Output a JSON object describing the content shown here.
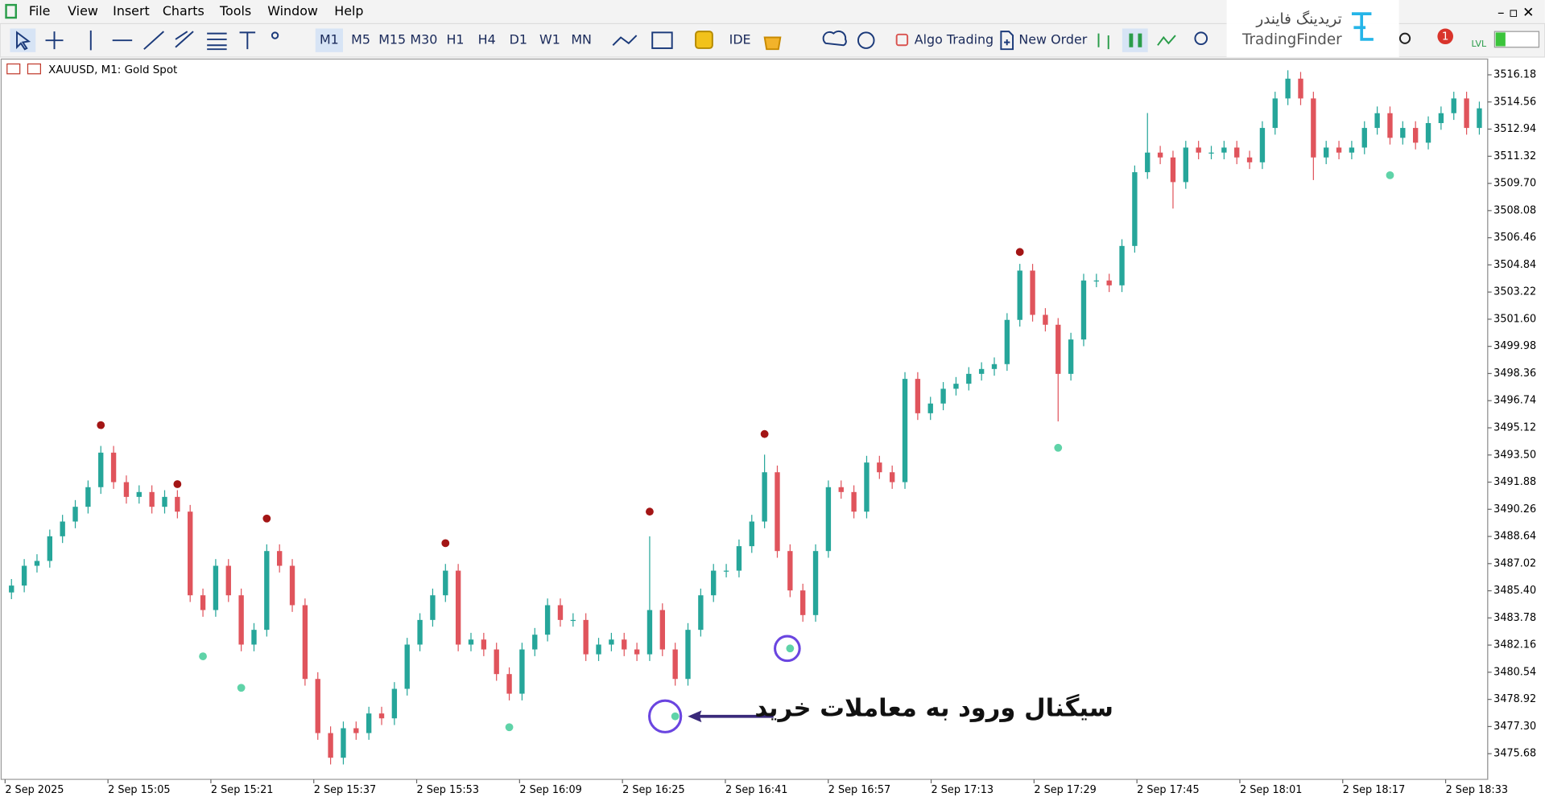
{
  "menu": [
    "File",
    "View",
    "Insert",
    "Charts",
    "Tools",
    "Window",
    "Help"
  ],
  "toolbar": {
    "timeframes": [
      "M1",
      "M5",
      "M15",
      "M30",
      "H1",
      "H4",
      "D1",
      "W1",
      "MN"
    ],
    "ide": "IDE",
    "algo_trading": "Algo Trading",
    "new_order": "New Order",
    "notifications": "1",
    "level": "LVL"
  },
  "logo": {
    "persian": "تریدینگ فایندر",
    "latin": "TradingFinder"
  },
  "chart_data": {
    "type": "candlestick",
    "title": "XAUUSD, M1:  Gold Spot",
    "up_color": "#26a69a",
    "down_color": "#e0545c",
    "ylim": [
      3474.15,
      3517.12
    ],
    "yticks": [
      3516.18,
      3514.56,
      3512.94,
      3511.32,
      {
        "value": 3509.7,
        "label": "3509.70"
      },
      3508.08,
      3506.46,
      3504.84,
      3503.22,
      {
        "value": 3501.6,
        "label": "3501.60"
      },
      3499.98,
      3498.36,
      3496.74,
      3495.12,
      {
        "value": 3493.5,
        "label": "3493.50"
      },
      3491.88,
      3490.26,
      3488.64,
      3487.02,
      {
        "value": 3485.4,
        "label": "3485.40"
      },
      3483.78,
      3482.16,
      3480.54,
      3478.92,
      {
        "value": 3477.3,
        "label": "3477.30"
      },
      3475.68
    ],
    "x_labels": [
      "2 Sep 2025",
      "2 Sep 15:05",
      "2 Sep 15:21",
      "2 Sep 15:37",
      "2 Sep 15:53",
      "2 Sep 16:09",
      "2 Sep 16:25",
      "2 Sep 16:41",
      "2 Sep 16:57",
      "2 Sep 17:13",
      "2 Sep 17:29",
      "2 Sep 17:45",
      "2 Sep 18:01",
      "2 Sep 18:17",
      "2 Sep 18:33"
    ],
    "candles": [
      [
        3485.3,
        3486.1,
        3484.9,
        3485.71
      ],
      [
        3485.71,
        3487.29,
        3485.31,
        3486.89
      ],
      [
        3486.89,
        3487.58,
        3486.49,
        3487.18
      ],
      [
        3487.18,
        3489.05,
        3486.78,
        3488.65
      ],
      [
        3488.65,
        3489.93,
        3488.25,
        3489.53
      ],
      [
        3489.53,
        3490.81,
        3489.13,
        3490.41
      ],
      [
        3490.41,
        3491.98,
        3490.01,
        3491.58
      ],
      [
        3491.58,
        3494.04,
        3491.18,
        3493.64
      ],
      [
        3493.64,
        3494.04,
        3491.48,
        3491.88
      ],
      [
        3491.88,
        3492.28,
        3490.6,
        3491.0
      ],
      [
        3491.0,
        3491.69,
        3490.6,
        3491.29
      ],
      [
        3491.29,
        3491.69,
        3490.01,
        3490.41
      ],
      [
        3490.41,
        3491.4,
        3490.01,
        3491.0
      ],
      [
        3491.0,
        3491.4,
        3489.72,
        3490.12
      ],
      [
        3490.12,
        3490.52,
        3484.73,
        3485.13
      ],
      [
        3485.13,
        3485.53,
        3483.85,
        3484.25
      ],
      [
        3484.25,
        3487.29,
        3483.85,
        3486.89
      ],
      [
        3486.89,
        3487.29,
        3484.73,
        3485.13
      ],
      [
        3485.13,
        3485.53,
        3481.79,
        3482.19
      ],
      [
        3482.19,
        3483.47,
        3481.79,
        3483.07
      ],
      [
        3483.07,
        3488.17,
        3482.67,
        3487.77
      ],
      [
        3487.77,
        3488.17,
        3486.49,
        3486.89
      ],
      [
        3486.89,
        3487.29,
        3484.14,
        3484.54
      ],
      [
        3484.54,
        3484.94,
        3479.74,
        3480.14
      ],
      [
        3480.14,
        3480.54,
        3476.51,
        3476.91
      ],
      [
        3476.91,
        3477.31,
        3475.04,
        3475.44
      ],
      [
        3475.44,
        3477.6,
        3475.04,
        3477.2
      ],
      [
        3477.2,
        3477.6,
        3476.51,
        3476.91
      ],
      [
        3476.91,
        3478.48,
        3476.51,
        3478.08
      ],
      [
        3478.08,
        3478.48,
        3477.39,
        3477.79
      ],
      [
        3477.79,
        3479.95,
        3477.39,
        3479.55
      ],
      [
        3479.55,
        3482.59,
        3479.15,
        3482.19
      ],
      [
        3482.19,
        3484.06,
        3481.79,
        3483.66
      ],
      [
        3483.66,
        3485.53,
        3483.26,
        3485.13
      ],
      [
        3485.13,
        3487.0,
        3484.73,
        3486.6
      ],
      [
        3486.6,
        3487.0,
        3481.79,
        3482.19
      ],
      [
        3482.19,
        3482.89,
        3481.79,
        3482.49
      ],
      [
        3482.49,
        3482.89,
        3481.5,
        3481.9
      ],
      [
        3481.9,
        3482.3,
        3480.03,
        3480.43
      ],
      [
        3480.43,
        3480.83,
        3478.86,
        3479.26
      ],
      [
        3479.26,
        3482.3,
        3478.86,
        3481.9
      ],
      [
        3481.9,
        3483.18,
        3481.5,
        3482.78
      ],
      [
        3482.78,
        3484.94,
        3482.38,
        3484.54
      ],
      [
        3484.54,
        3484.94,
        3483.26,
        3483.66
      ],
      [
        3483.66,
        3484.06,
        3483.26,
        3483.66
      ],
      [
        3483.66,
        3484.06,
        3481.21,
        3481.61
      ],
      [
        3481.61,
        3482.59,
        3481.21,
        3482.19
      ],
      [
        3482.19,
        3482.89,
        3481.79,
        3482.49
      ],
      [
        3482.49,
        3482.89,
        3481.5,
        3481.9
      ],
      [
        3481.9,
        3482.3,
        3481.21,
        3481.61
      ],
      [
        3481.61,
        3488.65,
        3481.21,
        3484.25
      ],
      [
        3484.25,
        3484.65,
        3481.5,
        3481.9
      ],
      [
        3481.9,
        3482.3,
        3479.74,
        3480.14
      ],
      [
        3480.14,
        3483.47,
        3479.74,
        3483.07
      ],
      [
        3483.07,
        3485.53,
        3482.67,
        3485.13
      ],
      [
        3485.13,
        3487.0,
        3484.73,
        3486.6
      ],
      [
        3486.6,
        3487.0,
        3486.2,
        3486.6
      ],
      [
        3486.6,
        3488.46,
        3486.2,
        3488.06
      ],
      [
        3488.06,
        3489.93,
        3487.66,
        3489.53
      ],
      [
        3489.53,
        3493.52,
        3489.13,
        3492.47
      ],
      [
        3492.47,
        3492.87,
        3487.37,
        3487.77
      ],
      [
        3487.77,
        3488.17,
        3485.02,
        3485.42
      ],
      [
        3485.42,
        3485.82,
        3483.55,
        3483.95
      ],
      [
        3483.95,
        3488.17,
        3483.55,
        3487.77
      ],
      [
        3487.77,
        3491.98,
        3487.37,
        3491.58
      ],
      [
        3491.58,
        3491.98,
        3490.89,
        3491.29
      ],
      [
        3491.29,
        3491.69,
        3489.72,
        3490.12
      ],
      [
        3490.12,
        3493.45,
        3489.72,
        3493.05
      ],
      [
        3493.05,
        3493.45,
        3492.07,
        3492.47
      ],
      [
        3492.47,
        3492.87,
        3491.48,
        3491.88
      ],
      [
        3491.88,
        3498.44,
        3491.48,
        3498.04
      ],
      [
        3498.04,
        3498.44,
        3495.59,
        3495.99
      ],
      [
        3495.99,
        3496.97,
        3495.59,
        3496.57
      ],
      [
        3496.57,
        3497.85,
        3496.17,
        3497.45
      ],
      [
        3497.45,
        3498.15,
        3497.05,
        3497.75
      ],
      [
        3497.75,
        3498.74,
        3497.35,
        3498.34
      ],
      [
        3498.34,
        3499.03,
        3497.94,
        3498.63
      ],
      [
        3498.63,
        3499.32,
        3498.23,
        3498.92
      ],
      [
        3498.92,
        3501.96,
        3498.52,
        3501.56
      ],
      [
        3501.56,
        3504.9,
        3501.16,
        3504.5
      ],
      [
        3504.5,
        3504.9,
        3501.46,
        3501.86
      ],
      [
        3501.86,
        3502.26,
        3500.87,
        3501.27
      ],
      [
        3501.27,
        3501.67,
        3495.5,
        3498.34
      ],
      [
        3498.34,
        3500.79,
        3497.94,
        3500.39
      ],
      [
        3500.39,
        3504.31,
        3499.99,
        3503.91
      ],
      [
        3503.91,
        3504.31,
        3503.51,
        3503.91
      ],
      [
        3503.91,
        3504.31,
        3503.22,
        3503.62
      ],
      [
        3503.62,
        3506.37,
        3503.22,
        3505.97
      ],
      [
        3505.97,
        3510.77,
        3505.57,
        3510.37
      ],
      [
        3510.37,
        3513.9,
        3509.97,
        3511.54
      ],
      [
        3511.54,
        3511.94,
        3510.85,
        3511.25
      ],
      [
        3511.25,
        3511.65,
        3508.2,
        3509.78
      ],
      [
        3509.78,
        3512.24,
        3509.38,
        3511.84
      ],
      [
        3511.84,
        3512.24,
        3511.14,
        3511.54
      ],
      [
        3511.54,
        3511.94,
        3511.14,
        3511.54
      ],
      [
        3511.54,
        3512.24,
        3511.14,
        3511.84
      ],
      [
        3511.84,
        3512.24,
        3510.85,
        3511.25
      ],
      [
        3511.25,
        3511.65,
        3510.56,
        3510.96
      ],
      [
        3510.96,
        3513.41,
        3510.56,
        3513.01
      ],
      [
        3513.01,
        3515.17,
        3512.61,
        3514.77
      ],
      [
        3514.77,
        3516.45,
        3514.37,
        3515.95
      ],
      [
        3515.95,
        3516.35,
        3514.37,
        3514.77
      ],
      [
        3514.77,
        3515.17,
        3509.9,
        3511.25
      ],
      [
        3511.25,
        3512.24,
        3510.85,
        3511.84
      ],
      [
        3511.84,
        3512.24,
        3511.14,
        3511.54
      ],
      [
        3511.54,
        3512.24,
        3511.14,
        3511.84
      ],
      [
        3511.84,
        3513.41,
        3511.44,
        3513.01
      ],
      [
        3513.01,
        3514.29,
        3512.61,
        3513.89
      ],
      [
        3513.89,
        3514.29,
        3512.02,
        3512.42
      ],
      [
        3512.42,
        3513.41,
        3512.02,
        3513.01
      ],
      [
        3513.01,
        3513.41,
        3511.73,
        3512.13
      ],
      [
        3512.13,
        3513.7,
        3511.73,
        3513.3
      ],
      [
        3513.3,
        3514.29,
        3512.9,
        3513.89
      ],
      [
        3513.89,
        3515.17,
        3513.49,
        3514.77
      ],
      [
        3514.77,
        3515.17,
        3512.61,
        3513.01
      ],
      [
        3513.01,
        3514.58,
        3512.61,
        3514.18
      ]
    ],
    "sell_signals": {
      "color": "#a31515",
      "values": [
        null,
        null,
        null,
        null,
        null,
        null,
        null,
        3495.28,
        null,
        null,
        null,
        null,
        null,
        3491.76,
        null,
        null,
        null,
        null,
        null,
        null,
        3489.71,
        null,
        null,
        null,
        null,
        null,
        null,
        null,
        null,
        null,
        null,
        null,
        null,
        null,
        3488.24,
        null,
        null,
        null,
        null,
        null,
        null,
        null,
        null,
        null,
        null,
        null,
        null,
        null,
        null,
        null,
        3490.12,
        null,
        null,
        null,
        null,
        null,
        null,
        null,
        null,
        3494.75,
        null,
        null,
        null,
        null,
        null,
        null,
        null,
        null,
        null,
        null,
        null,
        null,
        null,
        null,
        null,
        null,
        null,
        null,
        null,
        3505.61,
        null,
        null,
        null,
        null,
        null,
        null,
        null,
        null,
        null,
        null,
        null,
        null,
        null,
        null,
        null,
        null,
        null,
        null,
        null,
        null,
        null,
        null,
        null,
        null,
        null,
        null,
        null,
        null,
        null,
        null,
        null,
        null,
        null,
        null,
        null,
        null
      ]
    },
    "buy_signals": {
      "color": "#5fd3a8",
      "values": [
        null,
        null,
        null,
        null,
        null,
        null,
        null,
        null,
        null,
        null,
        null,
        null,
        null,
        null,
        null,
        3481.49,
        null,
        null,
        3479.61,
        null,
        null,
        null,
        null,
        null,
        null,
        null,
        null,
        null,
        null,
        null,
        null,
        null,
        null,
        null,
        null,
        null,
        null,
        null,
        null,
        3477.26,
        null,
        null,
        null,
        null,
        null,
        null,
        null,
        null,
        null,
        null,
        null,
        null,
        3477.91,
        null,
        null,
        null,
        null,
        null,
        null,
        null,
        null,
        3481.96,
        null,
        null,
        null,
        null,
        null,
        null,
        null,
        null,
        null,
        null,
        null,
        null,
        null,
        null,
        null,
        null,
        null,
        null,
        null,
        null,
        3493.93,
        null,
        null,
        null,
        null,
        null,
        null,
        null,
        null,
        null,
        null,
        null,
        null,
        null,
        null,
        null,
        null,
        null,
        null,
        null,
        null,
        null,
        null,
        null,
        null,
        null,
        3510.19,
        null,
        null,
        null,
        null,
        null,
        null,
        null
      ]
    },
    "annotation": "سیگنال ورود به معاملات خرید"
  }
}
